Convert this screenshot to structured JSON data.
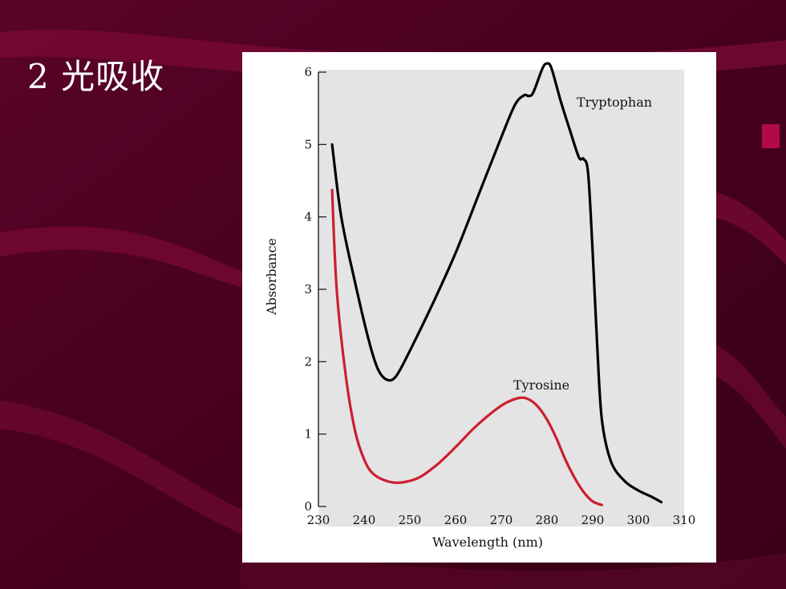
{
  "slide": {
    "title": "2 光吸收"
  },
  "colors": {
    "background": "#4a0020",
    "background_stripe": "#7a0a35",
    "plot_area": "#e4e4e4",
    "tryptophan": "#000000",
    "tyrosine": "#cc1f2e"
  },
  "chart_data": {
    "type": "line",
    "title": "",
    "xlabel": "Wavelength (nm)",
    "ylabel": "Absorbance",
    "xlim": [
      230,
      310
    ],
    "ylim": [
      0,
      6
    ],
    "xticks": [
      230,
      240,
      250,
      260,
      270,
      280,
      290,
      300,
      310
    ],
    "yticks": [
      0,
      1,
      2,
      3,
      4,
      5,
      6
    ],
    "grid": false,
    "legend": "inline labels",
    "series": [
      {
        "name": "Tryptophan",
        "points": [
          [
            233,
            5.0
          ],
          [
            235,
            4.0
          ],
          [
            238,
            3.1
          ],
          [
            241,
            2.3
          ],
          [
            243,
            1.9
          ],
          [
            245,
            1.75
          ],
          [
            247,
            1.8
          ],
          [
            250,
            2.15
          ],
          [
            255,
            2.8
          ],
          [
            260,
            3.5
          ],
          [
            265,
            4.3
          ],
          [
            270,
            5.1
          ],
          [
            273,
            5.55
          ],
          [
            275,
            5.68
          ],
          [
            276,
            5.67
          ],
          [
            277,
            5.72
          ],
          [
            279,
            6.05
          ],
          [
            280,
            6.12
          ],
          [
            281,
            6.05
          ],
          [
            283,
            5.6
          ],
          [
            285,
            5.2
          ],
          [
            287,
            4.82
          ],
          [
            288,
            4.8
          ],
          [
            289,
            4.6
          ],
          [
            290,
            3.5
          ],
          [
            291,
            2.2
          ],
          [
            292,
            1.2
          ],
          [
            294,
            0.62
          ],
          [
            297,
            0.35
          ],
          [
            300,
            0.22
          ],
          [
            303,
            0.13
          ],
          [
            305,
            0.06
          ]
        ]
      },
      {
        "name": "Tyrosine",
        "points": [
          [
            233,
            4.37
          ],
          [
            234,
            3.0
          ],
          [
            236,
            1.8
          ],
          [
            238,
            1.05
          ],
          [
            240,
            0.65
          ],
          [
            242,
            0.45
          ],
          [
            245,
            0.35
          ],
          [
            248,
            0.33
          ],
          [
            252,
            0.4
          ],
          [
            256,
            0.58
          ],
          [
            260,
            0.82
          ],
          [
            264,
            1.08
          ],
          [
            268,
            1.3
          ],
          [
            271,
            1.43
          ],
          [
            274,
            1.5
          ],
          [
            276,
            1.48
          ],
          [
            278,
            1.38
          ],
          [
            280,
            1.2
          ],
          [
            282,
            0.95
          ],
          [
            284,
            0.65
          ],
          [
            286,
            0.4
          ],
          [
            288,
            0.2
          ],
          [
            290,
            0.07
          ],
          [
            292,
            0.02
          ]
        ]
      }
    ]
  }
}
